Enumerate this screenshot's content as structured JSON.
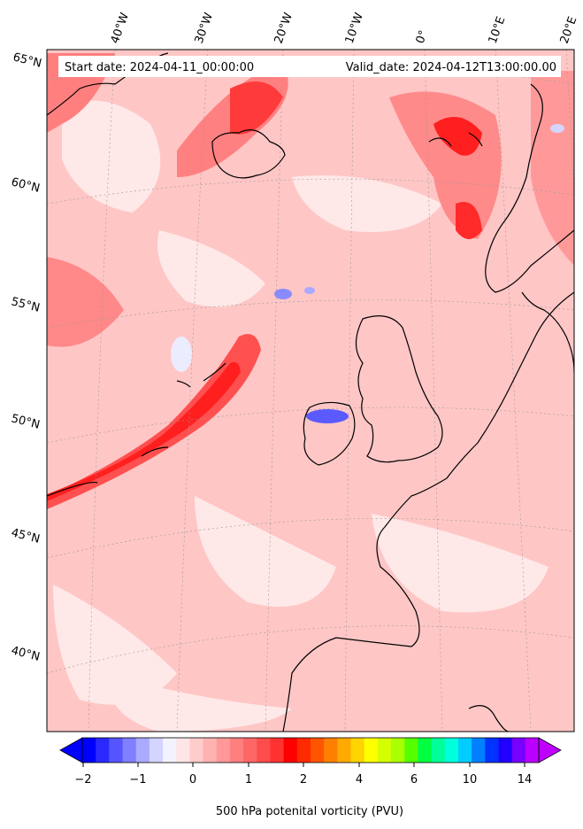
{
  "header": {
    "start_date": "Start date: 2024-04-11_00:00:00",
    "valid_date": "Valid_date: 2024-04-12T13:00:00.00"
  },
  "longitude_labels": [
    "40°W",
    "30°W",
    "20°W",
    "10°W",
    "0°",
    "10°E",
    "20°E"
  ],
  "latitude_labels": [
    "65°N",
    "60°N",
    "55°N",
    "50°N",
    "45°N",
    "40°N"
  ],
  "colorbar": {
    "label": "500 hPa potenital vorticity (PVU)",
    "tick_labels": [
      "−2",
      "−1",
      "0",
      "1",
      "2",
      "4",
      "6",
      "10",
      "14"
    ],
    "colors": [
      "#0000ff",
      "#2a2aff",
      "#5555ff",
      "#7f7fff",
      "#aaaaff",
      "#d4d4ff",
      "#f3f3ff",
      "#ffe6e6",
      "#ffcccc",
      "#ffb2b2",
      "#ff9999",
      "#ff7f7f",
      "#ff6666",
      "#ff4c4c",
      "#ff3232",
      "#ff0000",
      "#ff2a00",
      "#ff5500",
      "#ff8000",
      "#ffaa00",
      "#ffd400",
      "#ffff00",
      "#d4ff00",
      "#aaff00",
      "#55ff00",
      "#00ff40",
      "#00ff99",
      "#00ffdd",
      "#00ccff",
      "#0080ff",
      "#0033ff",
      "#2200ff",
      "#7700ff",
      "#bb00ff"
    ]
  },
  "colors": {
    "background_pv": "#ffc6c6",
    "strong_pv": "#ff1f1f",
    "weak_pv": "#ffe8e8",
    "negative_pv": "#5a5aff",
    "coastline": "#000000"
  }
}
